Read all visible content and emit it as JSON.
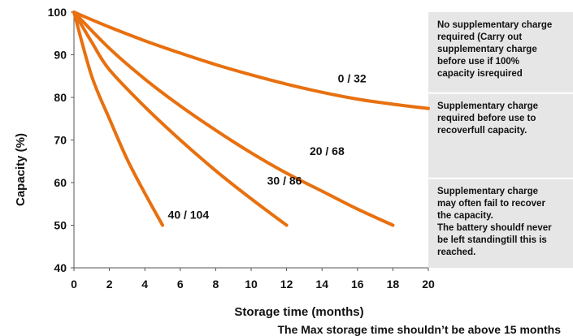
{
  "chart_data": {
    "type": "line",
    "title": "",
    "xlabel": "Storage time (months)",
    "ylabel": "Capacity (%)",
    "xlim": [
      0,
      20
    ],
    "ylim": [
      40,
      100
    ],
    "x_ticks": [
      "0",
      "2",
      "4",
      "6",
      "8",
      "10",
      "12",
      "14",
      "16",
      "18",
      "20"
    ],
    "y_ticks": [
      "40",
      "50",
      "60",
      "70",
      "80",
      "90",
      "100"
    ],
    "grid": false,
    "series": [
      {
        "label": "0 / 32",
        "color": "#e8700f",
        "points": [
          [
            0,
            100
          ],
          [
            2,
            96.5
          ],
          [
            4,
            93.3
          ],
          [
            6,
            90.4
          ],
          [
            8,
            87.7
          ],
          [
            10,
            85.3
          ],
          [
            12,
            83.1
          ],
          [
            14,
            81.2
          ],
          [
            16,
            79.6
          ],
          [
            18,
            78.4
          ],
          [
            20,
            77.4
          ]
        ]
      },
      {
        "label": "20 / 68",
        "color": "#e8700f",
        "points": [
          [
            0,
            100
          ],
          [
            2,
            91.5
          ],
          [
            4,
            84.3
          ],
          [
            6,
            78
          ],
          [
            8,
            72.3
          ],
          [
            10,
            67
          ],
          [
            12,
            62.2
          ],
          [
            14,
            58
          ],
          [
            16,
            53.8
          ],
          [
            18,
            50
          ]
        ]
      },
      {
        "label": "30 / 86",
        "color": "#e8700f",
        "points": [
          [
            0,
            100
          ],
          [
            1,
            93
          ],
          [
            2,
            86.5
          ],
          [
            4,
            77.8
          ],
          [
            6,
            70
          ],
          [
            8,
            62.8
          ],
          [
            10,
            56.2
          ],
          [
            12,
            50
          ]
        ]
      },
      {
        "label": "40 / 104",
        "color": "#e8700f",
        "points": [
          [
            0,
            100
          ],
          [
            1,
            85
          ],
          [
            2,
            75
          ],
          [
            3,
            65.5
          ],
          [
            4,
            57.5
          ],
          [
            5,
            50
          ]
        ]
      }
    ],
    "regions": [
      {
        "text": "No supplementary charge\nrequired (Carry out\nsupplementary charge\nbefore use if 100%\ncapacity isrequired",
        "y_top": 100,
        "y_bottom": 81
      },
      {
        "text": "Supplementary charge\nrequired before use to\nrecoverfull capacity.",
        "y_top": 81,
        "y_bottom": 61
      },
      {
        "text": "Supplementary charge\nmay often fail to recover\nthe capacity.\nThe battery shouldf never\nbe left standingtill this is\nreached.",
        "y_top": 61,
        "y_bottom": 40
      }
    ],
    "region_color": "#e6e6e6",
    "note": "The Max storage time shouldn’t be above 15 months"
  }
}
